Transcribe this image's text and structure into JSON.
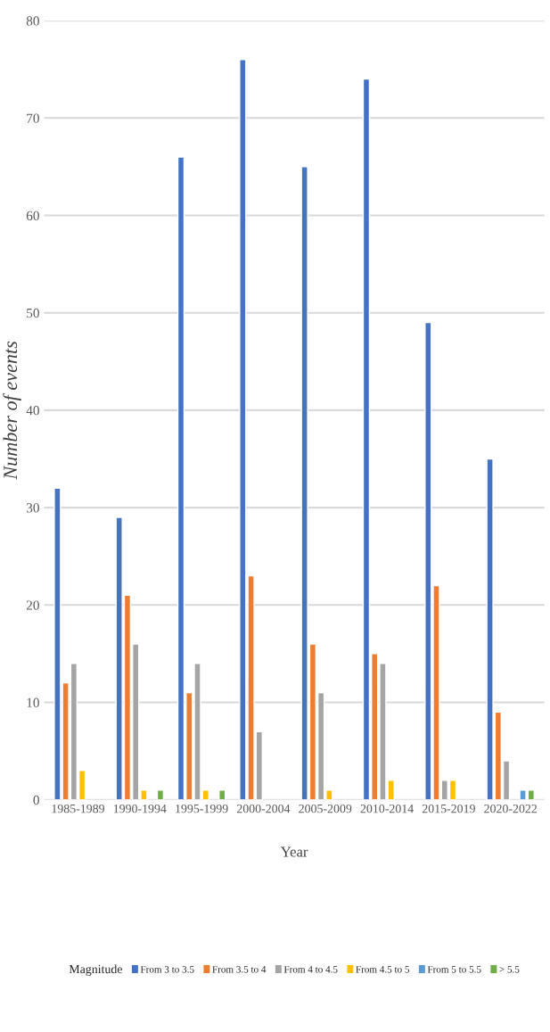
{
  "chart_data": {
    "type": "bar",
    "xlabel": "Year",
    "ylabel": "Number of events",
    "legend_title": "Magnitude",
    "categories": [
      "1985-1989",
      "1990-1994",
      "1995-1999",
      "2000-2004",
      "2005-2009",
      "2010-2014",
      "2015-2019",
      "2020-2022"
    ],
    "series": [
      {
        "name": "From 3 to 3.5",
        "color": "#4472c4",
        "values": [
          32,
          29,
          66,
          76,
          65,
          74,
          49,
          35
        ]
      },
      {
        "name": "From 3.5 to 4",
        "color": "#ed7d31",
        "values": [
          12,
          21,
          11,
          23,
          16,
          15,
          22,
          9
        ]
      },
      {
        "name": "From 4 to 4.5",
        "color": "#a5a5a5",
        "values": [
          14,
          16,
          14,
          7,
          11,
          14,
          2,
          4
        ]
      },
      {
        "name": "From 4.5 to 5",
        "color": "#ffc000",
        "values": [
          3,
          1,
          1,
          null,
          1,
          2,
          2,
          null
        ]
      },
      {
        "name": "From 5 to 5.5",
        "color": "#5b9bd5",
        "values": [
          null,
          null,
          null,
          null,
          null,
          null,
          null,
          1
        ]
      },
      {
        "name": "> 5.5",
        "color": "#70ad47",
        "values": [
          null,
          1,
          1,
          null,
          null,
          null,
          null,
          1
        ]
      }
    ],
    "ylim": [
      0,
      80
    ],
    "yticks": [
      0,
      10,
      20,
      30,
      40,
      50,
      60,
      70,
      80
    ],
    "grid": "y",
    "legend": "bottom"
  }
}
